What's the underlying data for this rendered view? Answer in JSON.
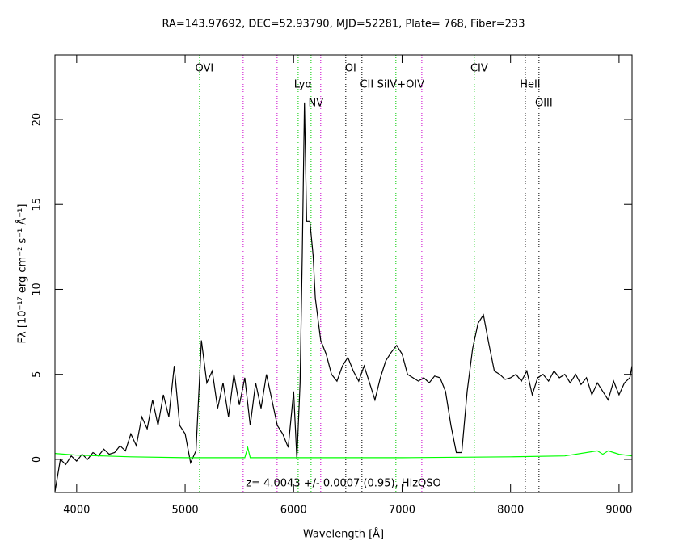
{
  "chart_data": {
    "type": "line",
    "title": "RA=143.97692, DEC=52.93790, MJD=52281, Plate= 768, Fiber=233",
    "xlabel": "Wavelength [Å]",
    "ylabel": "Fλ [10⁻¹⁷ erg cm⁻² s⁻¹ Å⁻¹]",
    "annotation": "z= 4.0043 +/- 0.0007 (0.95), HizQSO",
    "xlim": [
      3800,
      9120
    ],
    "ylim": [
      -1.95,
      23.8
    ],
    "xticks": [
      4000,
      5000,
      6000,
      7000,
      8000,
      9000
    ],
    "yticks": [
      0,
      5,
      10,
      15,
      20
    ],
    "lines": [
      {
        "x": 5133,
        "label": "OVI",
        "color": "#00cc00"
      },
      {
        "x": 5535,
        "color": "#cc00cc"
      },
      {
        "x": 5848,
        "color": "#cc00cc"
      },
      {
        "x": 6042,
        "label": "Lyα",
        "color": "#00cc00"
      },
      {
        "x": 6161,
        "label": "NV",
        "color": "#00cc00"
      },
      {
        "x": 6250,
        "color": "#cc00cc"
      },
      {
        "x": 6481,
        "label": "OI",
        "color": "#000000"
      },
      {
        "x": 6630,
        "label": "CII",
        "color": "#000000"
      },
      {
        "x": 6943,
        "label": "SiIV+OIV",
        "color": "#00cc00"
      },
      {
        "x": 7182,
        "color": "#cc00cc"
      },
      {
        "x": 7666,
        "label": "CIV",
        "color": "#00cc00"
      },
      {
        "x": 8136,
        "label": "HeII",
        "color": "#000000"
      },
      {
        "x": 8262,
        "label": "OIII",
        "color": "#000000"
      }
    ],
    "series": [
      {
        "color": "#000000",
        "x": [
          3800,
          3850,
          3900,
          3950,
          4000,
          4050,
          4100,
          4150,
          4200,
          4250,
          4300,
          4350,
          4400,
          4450,
          4500,
          4550,
          4600,
          4650,
          4700,
          4750,
          4800,
          4850,
          4900,
          4950,
          5000,
          5050,
          5100,
          5150,
          5200,
          5250,
          5300,
          5350,
          5400,
          5450,
          5500,
          5550,
          5600,
          5650,
          5700,
          5750,
          5800,
          5850,
          5900,
          5950,
          6000,
          6030,
          6060,
          6080,
          6100,
          6120,
          6150,
          6180,
          6200,
          6250,
          6300,
          6350,
          6400,
          6450,
          6500,
          6550,
          6600,
          6650,
          6700,
          6750,
          6800,
          6850,
          6900,
          6950,
          7000,
          7050,
          7100,
          7150,
          7200,
          7250,
          7300,
          7350,
          7400,
          7450,
          7500,
          7550,
          7600,
          7650,
          7700,
          7750,
          7800,
          7850,
          7900,
          7950,
          8000,
          8050,
          8100,
          8150,
          8200,
          8250,
          8300,
          8350,
          8400,
          8450,
          8500,
          8550,
          8600,
          8650,
          8700,
          8750,
          8800,
          8850,
          8900,
          8950,
          9000,
          9050,
          9100,
          9120
        ],
        "values": [
          -1.9,
          0.0,
          -0.3,
          0.2,
          -0.1,
          0.3,
          0.0,
          0.4,
          0.2,
          0.6,
          0.3,
          0.4,
          0.8,
          0.5,
          1.5,
          0.8,
          2.5,
          1.8,
          3.5,
          2.0,
          3.8,
          2.5,
          5.5,
          2.0,
          1.5,
          -0.2,
          0.5,
          7.0,
          4.5,
          5.2,
          3.0,
          4.5,
          2.5,
          5.0,
          3.2,
          4.8,
          2.0,
          4.5,
          3.0,
          5.0,
          3.5,
          2.0,
          1.5,
          0.7,
          4.0,
          0.0,
          4.5,
          12,
          21,
          14,
          14,
          12,
          9.5,
          7,
          6.2,
          5.0,
          4.6,
          5.5,
          6.0,
          5.2,
          4.6,
          5.5,
          4.5,
          3.5,
          4.8,
          5.8,
          6.3,
          6.7,
          6.2,
          5.0,
          4.8,
          4.6,
          4.8,
          4.5,
          4.9,
          4.8,
          4.0,
          2.0,
          0.4,
          0.4,
          4.0,
          6.5,
          8.0,
          8.5,
          6.8,
          5.2,
          5.0,
          4.7,
          4.8,
          5.0,
          4.6,
          5.2,
          3.8,
          4.8,
          5.0,
          4.6,
          5.2,
          4.8,
          5.0,
          4.5,
          5.0,
          4.4,
          4.8,
          3.8,
          4.5,
          4.0,
          3.5,
          4.6,
          3.8,
          4.5,
          4.8,
          5.5
        ]
      },
      {
        "color": "#00ff00",
        "x": [
          3800,
          4000,
          4500,
          5000,
          5550,
          5577,
          5600,
          6000,
          7000,
          8000,
          8500,
          8800,
          8850,
          8900,
          9000,
          9120
        ],
        "values": [
          0.35,
          0.25,
          0.15,
          0.1,
          0.1,
          0.7,
          0.1,
          0.1,
          0.1,
          0.15,
          0.2,
          0.5,
          0.3,
          0.5,
          0.3,
          0.2
        ]
      }
    ]
  }
}
